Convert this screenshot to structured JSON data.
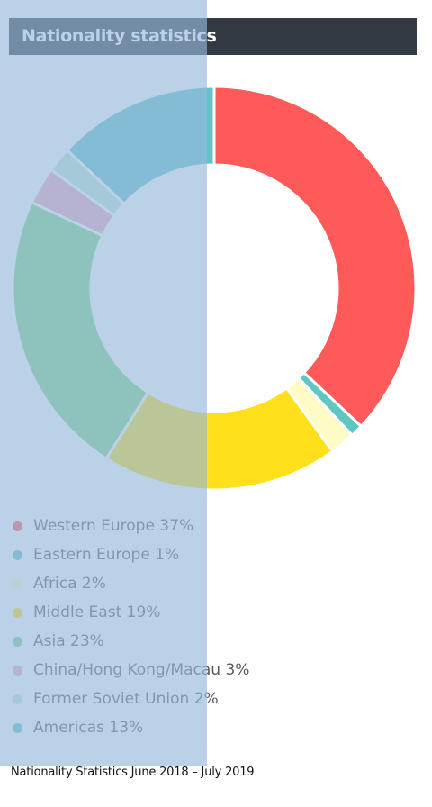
{
  "title": "Nationality statistics",
  "footnote": "Nationality Statistics June 2018 – July 2019",
  "chart_data": {
    "type": "pie",
    "donut": true,
    "categories": [
      "Western Europe",
      "Eastern Europe",
      "Africa",
      "Middle East",
      "Asia",
      "China/Hong Kong/Macau",
      "Former Soviet Union",
      "Americas"
    ],
    "values": [
      37,
      1,
      2,
      19,
      23,
      3,
      2,
      13
    ],
    "colors": [
      "#ff5a5a",
      "#5fc7c0",
      "#fffbc4",
      "#ffe01a",
      "#7fd483",
      "#f0a6c0",
      "#bfe8d5",
      "#63c3c9"
    ],
    "legend_labels": [
      "Western Europe 37%",
      "Eastern Europe 1%",
      "Africa 2%",
      "Middle East 19%",
      "Asia 23%",
      "China/Hong Kong/Macau 3%",
      "Former Soviet Union 2%",
      "Americas 13%"
    ],
    "legend_position": "bottom-left"
  }
}
